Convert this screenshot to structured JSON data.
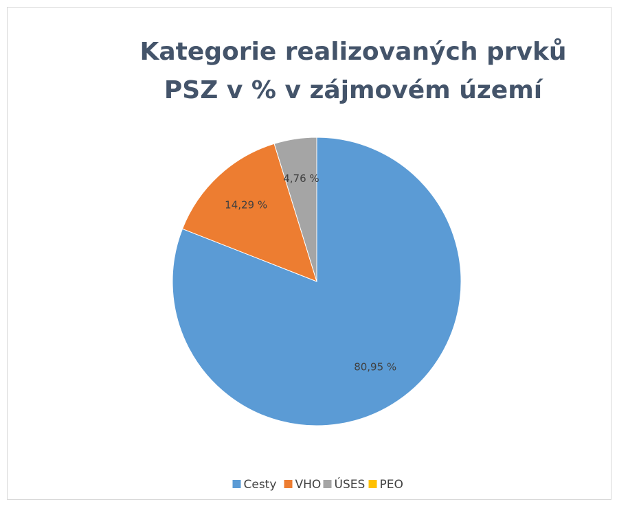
{
  "chart_data": {
    "type": "pie",
    "title": "Kategorie realizovaných prvků PSZ v % v zájmovém území",
    "categories": [
      "Cesty",
      "VHO",
      "ÚSES",
      "PEO"
    ],
    "values": [
      80.95,
      14.29,
      4.76,
      0
    ],
    "value_labels": [
      "80,95 %",
      "14,29 %",
      "4,76 %",
      null
    ],
    "colors": [
      "#5b9bd5",
      "#ed7d31",
      "#a5a5a5",
      "#ffc000"
    ],
    "legend": "bottom"
  }
}
